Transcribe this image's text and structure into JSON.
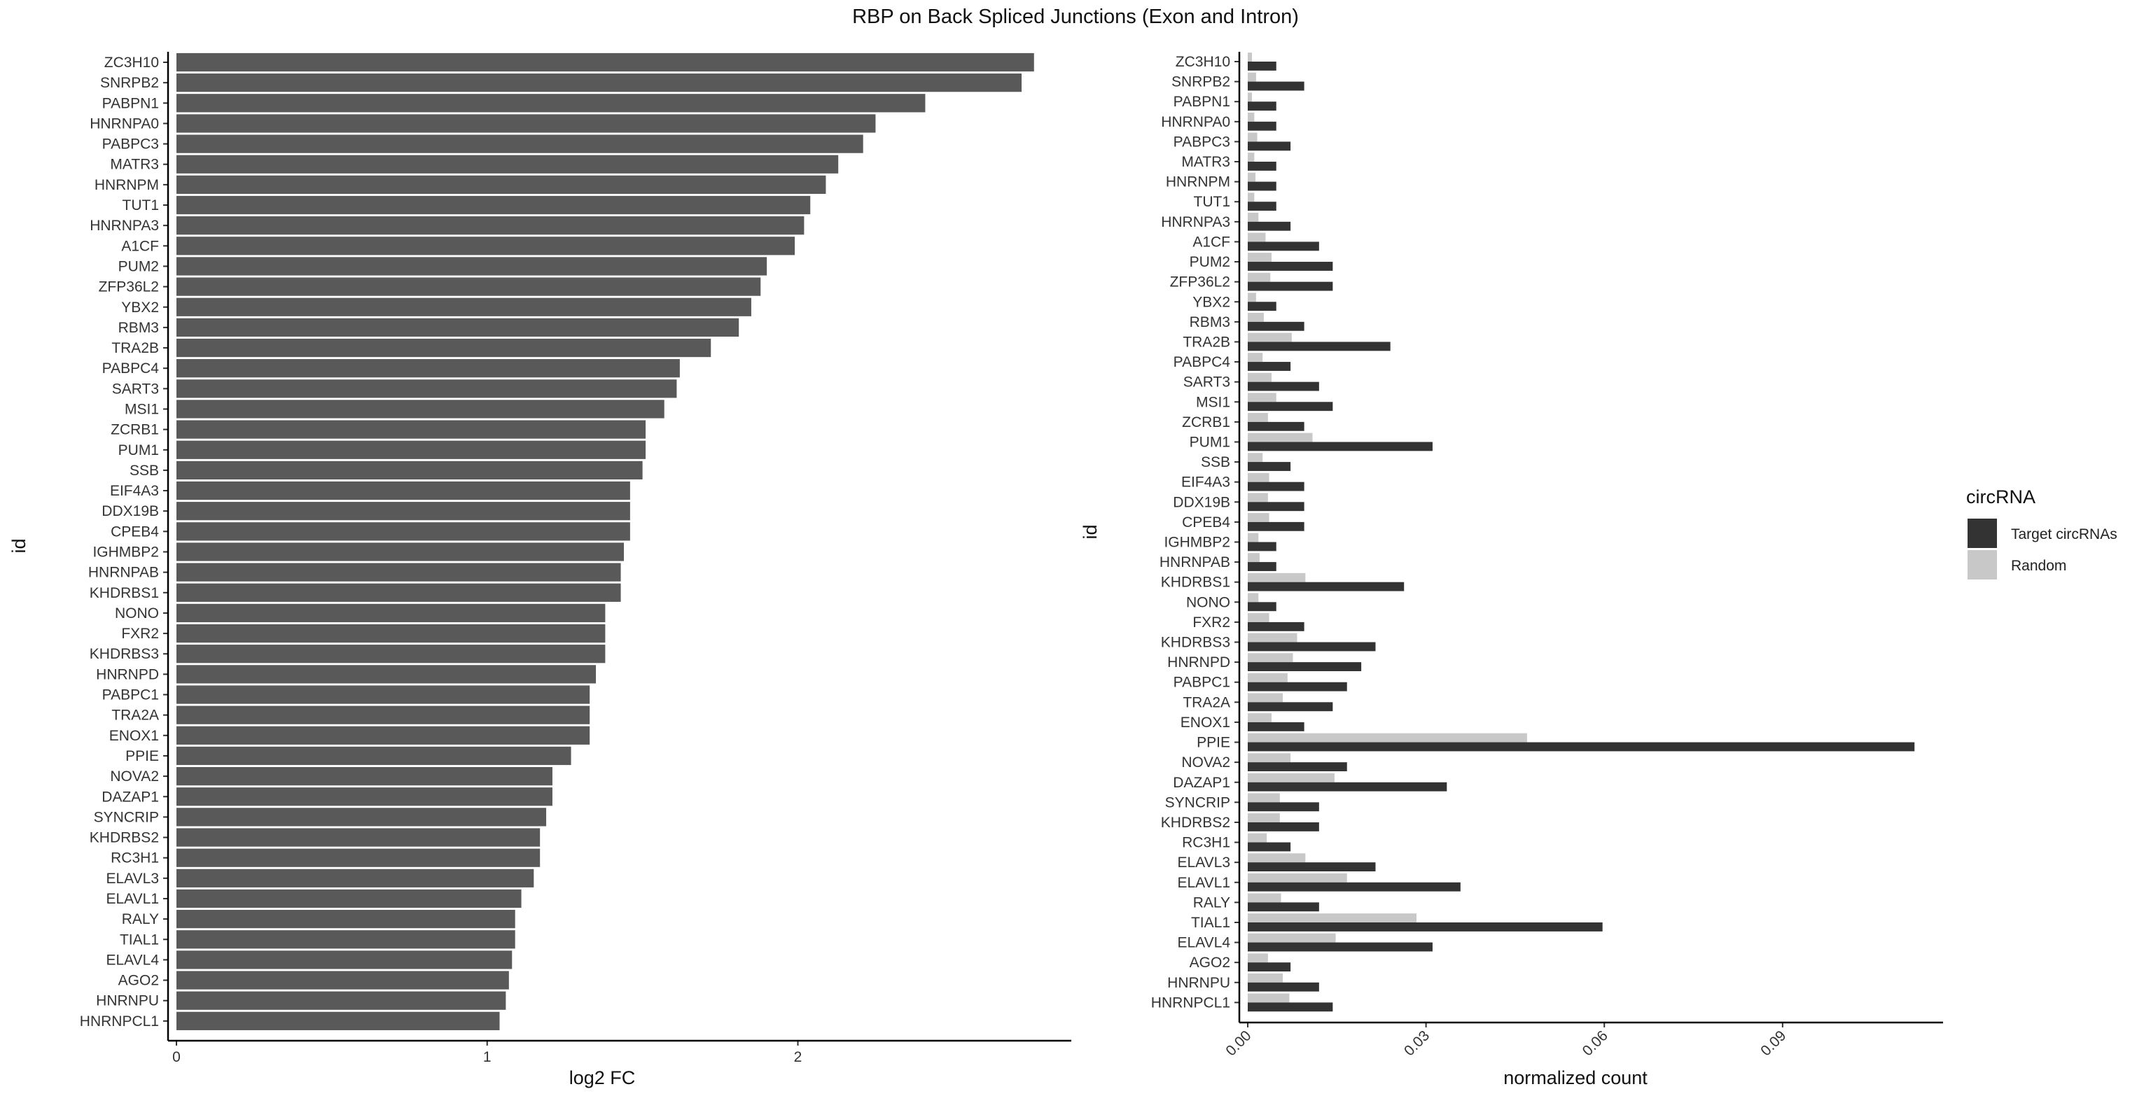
{
  "chart_data": [
    {
      "type": "bar",
      "orientation": "horizontal",
      "title": "RBP on Back Spliced Junctions (Exon and Intron)",
      "xlabel": "log2 FC",
      "ylabel": "id",
      "xlim": [
        0,
        2.88
      ],
      "xticks": [
        0,
        1,
        2
      ],
      "grid": false,
      "bar_color": "#595959",
      "categories": [
        "ZC3H10",
        "SNRPB2",
        "PABPN1",
        "HNRNPA0",
        "PABPC3",
        "MATR3",
        "HNRNPM",
        "TUT1",
        "HNRNPA3",
        "A1CF",
        "PUM2",
        "ZFP36L2",
        "YBX2",
        "RBM3",
        "TRA2B",
        "PABPC4",
        "SART3",
        "MSI1",
        "ZCRB1",
        "PUM1",
        "SSB",
        "EIF4A3",
        "DDX19B",
        "CPEB4",
        "IGHMBP2",
        "HNRNPAB",
        "KHDRBS1",
        "NONO",
        "FXR2",
        "KHDRBS3",
        "HNRNPD",
        "PABPC1",
        "TRA2A",
        "ENOX1",
        "PPIE",
        "NOVA2",
        "DAZAP1",
        "SYNCRIP",
        "KHDRBS2",
        "RC3H1",
        "ELAVL3",
        "ELAVL1",
        "RALY",
        "TIAL1",
        "ELAVL4",
        "AGO2",
        "HNRNPU",
        "HNRNPCL1"
      ],
      "values": [
        2.76,
        2.72,
        2.41,
        2.25,
        2.21,
        2.13,
        2.09,
        2.04,
        2.02,
        1.99,
        1.9,
        1.88,
        1.85,
        1.81,
        1.72,
        1.62,
        1.61,
        1.57,
        1.51,
        1.51,
        1.5,
        1.46,
        1.46,
        1.46,
        1.44,
        1.43,
        1.43,
        1.38,
        1.38,
        1.38,
        1.35,
        1.33,
        1.33,
        1.33,
        1.27,
        1.21,
        1.21,
        1.19,
        1.17,
        1.17,
        1.15,
        1.11,
        1.09,
        1.09,
        1.08,
        1.07,
        1.06,
        1.04
      ]
    },
    {
      "type": "bar",
      "orientation": "horizontal",
      "grouped": true,
      "xlabel": "normalized count",
      "ylabel": "id",
      "xlim": [
        0,
        0.117
      ],
      "xticks": [
        "0.00",
        "0.03",
        "0.06",
        "0.09"
      ],
      "grid": false,
      "legend": {
        "title": "circRNA",
        "position": "right"
      },
      "categories": [
        "ZC3H10",
        "SNRPB2",
        "PABPN1",
        "HNRNPA0",
        "PABPC3",
        "MATR3",
        "HNRNPM",
        "TUT1",
        "HNRNPA3",
        "A1CF",
        "PUM2",
        "ZFP36L2",
        "YBX2",
        "RBM3",
        "TRA2B",
        "PABPC4",
        "SART3",
        "MSI1",
        "ZCRB1",
        "PUM1",
        "SSB",
        "EIF4A3",
        "DDX19B",
        "CPEB4",
        "IGHMBP2",
        "HNRNPAB",
        "KHDRBS1",
        "NONO",
        "FXR2",
        "KHDRBS3",
        "HNRNPD",
        "PABPC1",
        "TRA2A",
        "ENOX1",
        "PPIE",
        "NOVA2",
        "DAZAP1",
        "SYNCRIP",
        "KHDRBS2",
        "RC3H1",
        "ELAVL3",
        "ELAVL1",
        "RALY",
        "TIAL1",
        "ELAVL4",
        "AGO2",
        "HNRNPU",
        "HNRNPCL1"
      ],
      "series": [
        {
          "name": "Target circRNAs",
          "color": "#333333",
          "values": [
            0.0048,
            0.0095,
            0.0048,
            0.0048,
            0.0072,
            0.0048,
            0.0048,
            0.0048,
            0.0072,
            0.012,
            0.0143,
            0.0143,
            0.0048,
            0.0095,
            0.024,
            0.0072,
            0.012,
            0.0143,
            0.0095,
            0.0311,
            0.0072,
            0.0095,
            0.0095,
            0.0095,
            0.0048,
            0.0048,
            0.0263,
            0.0048,
            0.0095,
            0.0215,
            0.0191,
            0.0167,
            0.0143,
            0.0095,
            0.1122,
            0.0167,
            0.0335,
            0.012,
            0.012,
            0.0072,
            0.0215,
            0.0358,
            0.012,
            0.0597,
            0.0311,
            0.0072,
            0.012,
            0.0143
          ]
        },
        {
          "name": "Random",
          "color": "#c8c8c8",
          "values": [
            0.0007,
            0.0014,
            0.0007,
            0.0011,
            0.0016,
            0.0011,
            0.0013,
            0.0011,
            0.0018,
            0.003,
            0.004,
            0.0038,
            0.0014,
            0.0027,
            0.0074,
            0.0025,
            0.004,
            0.0048,
            0.0034,
            0.0109,
            0.0025,
            0.0036,
            0.0034,
            0.0036,
            0.0018,
            0.002,
            0.0097,
            0.0018,
            0.0036,
            0.0083,
            0.0076,
            0.0067,
            0.0059,
            0.004,
            0.047,
            0.0072,
            0.0146,
            0.0054,
            0.0054,
            0.0032,
            0.0097,
            0.0167,
            0.0056,
            0.0284,
            0.0148,
            0.0034,
            0.0059,
            0.007
          ]
        }
      ]
    }
  ]
}
